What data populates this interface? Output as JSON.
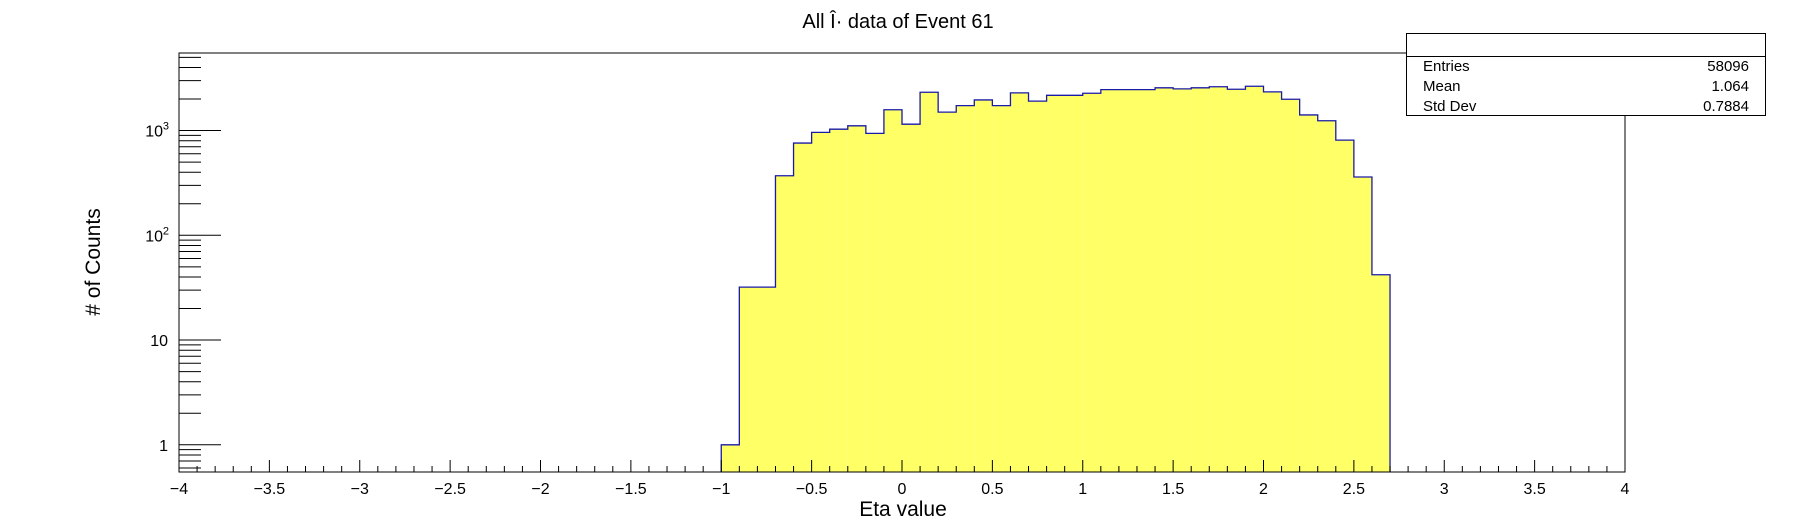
{
  "chart_data": {
    "type": "bar",
    "title": "All Î· data of Event 61",
    "xlabel": "Eta value",
    "ylabel": "# of Counts",
    "xlim": [
      -4,
      4
    ],
    "ylim": [
      0.55,
      5500
    ],
    "yscale": "log",
    "bin_width": 0.1,
    "x_ticks": [
      "−4",
      "−3.5",
      "−3",
      "−2.5",
      "−2",
      "−1.5",
      "−1",
      "−0.5",
      "0",
      "0.5",
      "1",
      "1.5",
      "2",
      "2.5",
      "3",
      "3.5",
      "4"
    ],
    "x_tick_values": [
      -4,
      -3.5,
      -3,
      -2.5,
      -2,
      -1.5,
      -1,
      -0.5,
      0,
      0.5,
      1,
      1.5,
      2,
      2.5,
      3,
      3.5,
      4
    ],
    "y_ticks": [
      "1",
      "10",
      "10",
      "10"
    ],
    "y_tick_exponents": [
      "",
      "",
      "2",
      "3"
    ],
    "y_tick_values": [
      1,
      10,
      100,
      1000
    ],
    "fill_color": "#ffff66",
    "line_color": "#1a1aa8",
    "bins": [
      {
        "x0": -1.0,
        "x1": -0.9,
        "y": 1
      },
      {
        "x0": -0.9,
        "x1": -0.7,
        "y": 32
      },
      {
        "x0": -0.7,
        "x1": -0.6,
        "y": 370
      },
      {
        "x0": -0.6,
        "x1": -0.5,
        "y": 760
      },
      {
        "x0": -0.5,
        "x1": -0.4,
        "y": 960
      },
      {
        "x0": -0.4,
        "x1": -0.3,
        "y": 1030
      },
      {
        "x0": -0.3,
        "x1": -0.2,
        "y": 1110
      },
      {
        "x0": -0.2,
        "x1": -0.1,
        "y": 940
      },
      {
        "x0": -0.1,
        "x1": 0.0,
        "y": 1580
      },
      {
        "x0": 0.0,
        "x1": 0.1,
        "y": 1150
      },
      {
        "x0": 0.1,
        "x1": 0.2,
        "y": 2320
      },
      {
        "x0": 0.2,
        "x1": 0.3,
        "y": 1500
      },
      {
        "x0": 0.3,
        "x1": 0.4,
        "y": 1730
      },
      {
        "x0": 0.4,
        "x1": 0.5,
        "y": 1960
      },
      {
        "x0": 0.5,
        "x1": 0.6,
        "y": 1730
      },
      {
        "x0": 0.6,
        "x1": 0.7,
        "y": 2290
      },
      {
        "x0": 0.7,
        "x1": 0.8,
        "y": 1910
      },
      {
        "x0": 0.8,
        "x1": 1.0,
        "y": 2170
      },
      {
        "x0": 1.0,
        "x1": 1.1,
        "y": 2270
      },
      {
        "x0": 1.1,
        "x1": 1.4,
        "y": 2460
      },
      {
        "x0": 1.4,
        "x1": 1.5,
        "y": 2560
      },
      {
        "x0": 1.5,
        "x1": 1.6,
        "y": 2500
      },
      {
        "x0": 1.6,
        "x1": 1.7,
        "y": 2560
      },
      {
        "x0": 1.7,
        "x1": 1.8,
        "y": 2620
      },
      {
        "x0": 1.8,
        "x1": 1.9,
        "y": 2480
      },
      {
        "x0": 1.9,
        "x1": 2.0,
        "y": 2650
      },
      {
        "x0": 2.0,
        "x1": 2.1,
        "y": 2340
      },
      {
        "x0": 2.1,
        "x1": 2.2,
        "y": 1990
      },
      {
        "x0": 2.2,
        "x1": 2.3,
        "y": 1410
      },
      {
        "x0": 2.3,
        "x1": 2.4,
        "y": 1240
      },
      {
        "x0": 2.4,
        "x1": 2.5,
        "y": 810
      },
      {
        "x0": 2.5,
        "x1": 2.6,
        "y": 360
      },
      {
        "x0": 2.6,
        "x1": 2.7,
        "y": 42
      }
    ],
    "stats": {
      "entries_label": "Entries",
      "entries": "58096",
      "mean_label": "Mean",
      "mean": "1.064",
      "stddev_label": "Std Dev",
      "stddev": "0.7884"
    }
  }
}
